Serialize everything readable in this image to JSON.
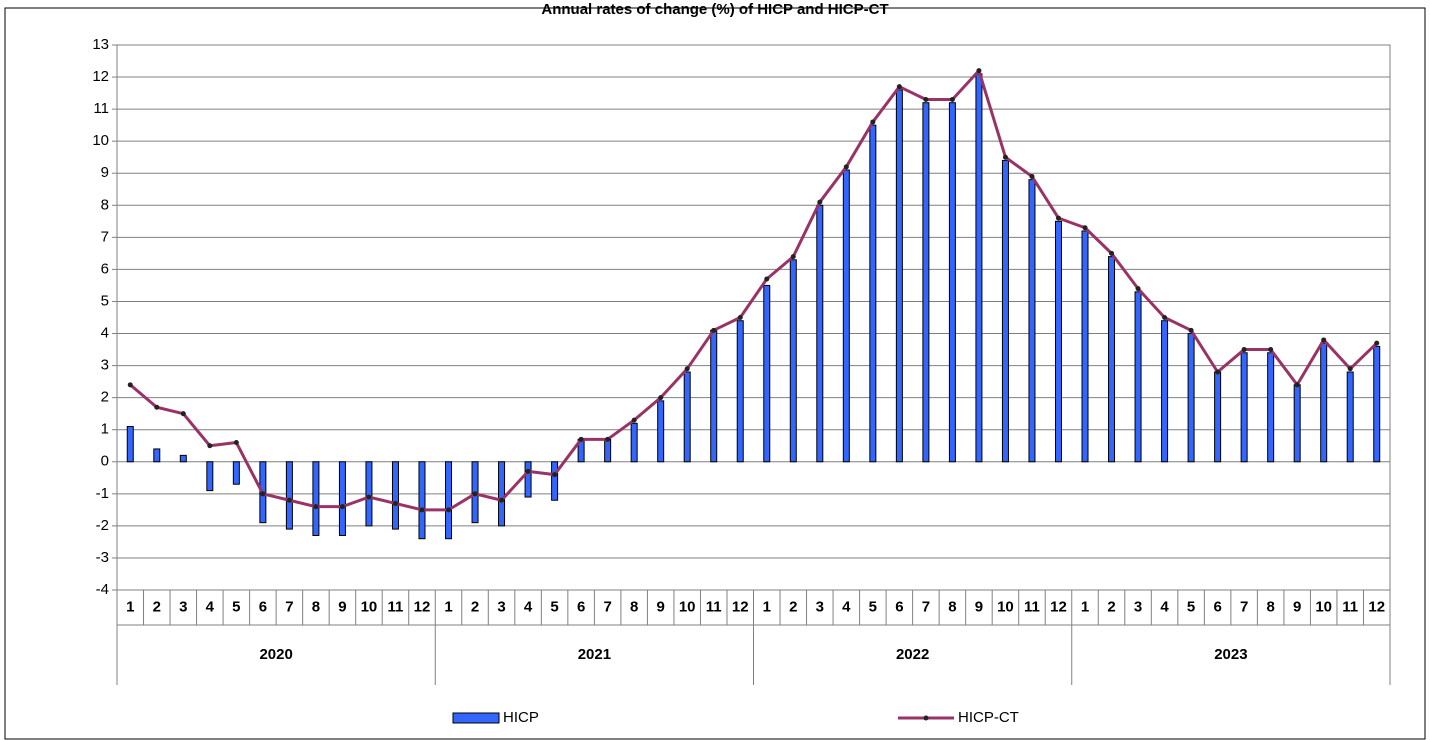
{
  "chart_data": {
    "type": "bar-line",
    "title": "Annual rates of change (%) of HICP and HICP-CT",
    "groups": [
      {
        "label": "2020",
        "categories": [
          "1",
          "2",
          "3",
          "4",
          "5",
          "6",
          "7",
          "8",
          "9",
          "10",
          "11",
          "12"
        ]
      },
      {
        "label": "2021",
        "categories": [
          "1",
          "2",
          "3",
          "4",
          "5",
          "6",
          "7",
          "8",
          "9",
          "10",
          "11",
          "12"
        ]
      },
      {
        "label": "2022",
        "categories": [
          "1",
          "2",
          "3",
          "4",
          "5",
          "6",
          "7",
          "8",
          "9",
          "10",
          "11",
          "12"
        ]
      },
      {
        "label": "2023",
        "categories": [
          "1",
          "2",
          "3",
          "4",
          "5",
          "6",
          "7",
          "8",
          "9",
          "10",
          "11",
          "12"
        ]
      }
    ],
    "series": [
      {
        "name": "HICP",
        "type": "bar",
        "color": "#3366ff",
        "values": [
          1.1,
          0.4,
          0.2,
          -0.9,
          -0.7,
          -1.9,
          -2.1,
          -2.3,
          -2.3,
          -2.0,
          -2.1,
          -2.4,
          -2.4,
          -1.9,
          -2.0,
          -1.1,
          -1.2,
          0.7,
          0.7,
          1.2,
          1.9,
          2.8,
          4.1,
          4.4,
          5.5,
          6.3,
          8.0,
          9.1,
          10.5,
          11.6,
          11.2,
          11.2,
          12.1,
          9.4,
          8.8,
          7.5,
          7.2,
          6.4,
          5.3,
          4.4,
          4.0,
          2.8,
          3.4,
          3.4,
          2.4,
          3.7,
          2.8,
          3.6
        ]
      },
      {
        "name": "HICP-CT",
        "type": "line",
        "color": "#993366",
        "values": [
          2.4,
          1.7,
          1.5,
          0.5,
          0.6,
          -1.0,
          -1.2,
          -1.4,
          -1.4,
          -1.1,
          -1.3,
          -1.5,
          -1.5,
          -1.0,
          -1.2,
          -0.3,
          -0.4,
          0.7,
          0.7,
          1.3,
          2.0,
          2.9,
          4.1,
          4.5,
          5.7,
          6.4,
          8.1,
          9.2,
          10.6,
          11.7,
          11.3,
          11.3,
          12.2,
          9.5,
          8.9,
          7.6,
          7.3,
          6.5,
          5.4,
          4.5,
          4.1,
          2.8,
          3.5,
          3.5,
          2.4,
          3.8,
          2.9,
          3.7
        ]
      }
    ],
    "ylim": [
      -4,
      13
    ],
    "yticks": [
      -4,
      -3,
      -2,
      -1,
      0,
      1,
      2,
      3,
      4,
      5,
      6,
      7,
      8,
      9,
      10,
      11,
      12,
      13
    ],
    "grid": true,
    "legend": "bottom"
  }
}
